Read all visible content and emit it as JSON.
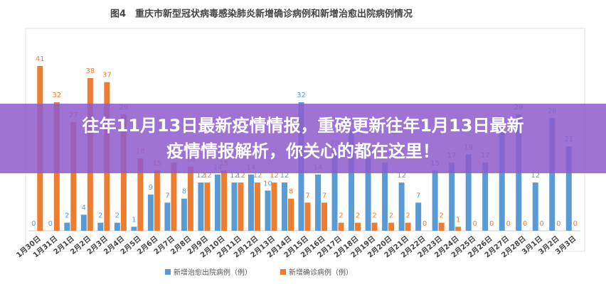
{
  "chart_data": {
    "type": "bar",
    "title": "图4　重庆市新型冠状病毒感染肺炎新增确诊病例和新增治愈出院病例情况",
    "categories": [
      "1月30日",
      "1月31日",
      "2月1日",
      "2月2日",
      "2月3日",
      "2月4日",
      "2月5日",
      "2月6日",
      "2月7日",
      "2月8日",
      "2月9日",
      "2月10日",
      "2月11日",
      "2月12日",
      "2月13日",
      "2月14日",
      "2月15日",
      "2月16日",
      "2月17日",
      "2月18日",
      "2月19日",
      "2月20日",
      "2月21日",
      "2月22日",
      "2月23日",
      "2月24日",
      "2月25日",
      "2月26日",
      "2月27日",
      "2月28日",
      "3月1日",
      "3月2日",
      "3月3日"
    ],
    "series": [
      {
        "name": "新增治愈出院病例（例）",
        "color": "#5b9bd5",
        "values": [
          0,
          0,
          2,
          4,
          2,
          2,
          1,
          9,
          7,
          8,
          12,
          14,
          12,
          14,
          10,
          12,
          32,
          14,
          20,
          25,
          18,
          17,
          12,
          7,
          15,
          17,
          19,
          17,
          26,
          29,
          12,
          28,
          21
        ]
      },
      {
        "name": "新增确诊病例（例）",
        "color": "#ed7d31",
        "values": [
          41,
          32,
          27,
          38,
          37,
          29,
          18,
          15,
          17,
          16,
          12,
          15,
          12,
          12,
          12,
          8,
          7,
          7,
          2,
          2,
          2,
          2,
          2,
          0,
          2,
          1,
          0,
          0,
          0,
          0,
          0,
          0,
          0
        ]
      }
    ]
  },
  "banner": {
    "lines": [
      "往年11月13日最新疫情情报，重磅更新往年1月13日最新",
      "疫情情报解析，你关心的都在这里！"
    ]
  }
}
